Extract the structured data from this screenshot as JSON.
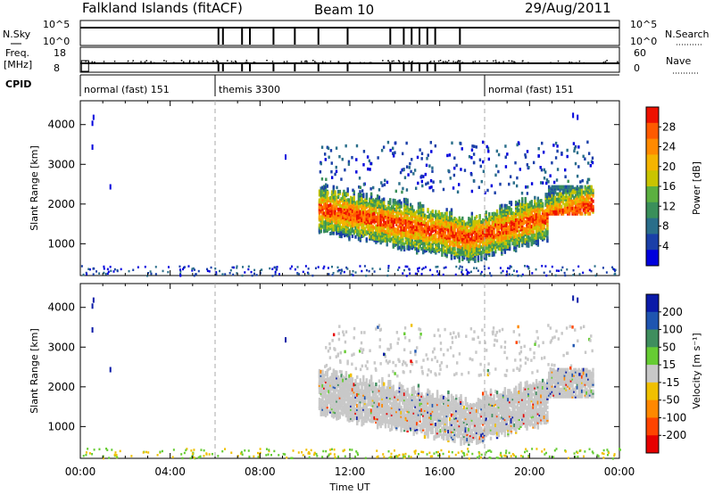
{
  "header": {
    "title": "Falkland Islands (fitACF)",
    "beam": "Beam 10",
    "date": "29/Aug/2011"
  },
  "param_panel": {
    "nsky_label": "N.Sky",
    "nsky_ticks": [
      "10^5",
      "10^0"
    ],
    "nsearch_label": "N.Search",
    "nsearch_ticks": [
      "10^5",
      "10^0"
    ],
    "freq_label": "Freq.",
    "freq_unit": "[MHz]",
    "freq_ticks": [
      "18",
      "8"
    ],
    "nave_label": "Nave",
    "nave_ticks": [
      "60",
      "0"
    ],
    "cpid_label": "CPID",
    "cpid_segments": [
      {
        "name": "normal (fast) 151",
        "start": 0,
        "end": 6
      },
      {
        "name": "themis 3300",
        "start": 6,
        "end": 18
      },
      {
        "name": "normal (fast) 151",
        "start": 18,
        "end": 24
      }
    ]
  },
  "chart_data": [
    {
      "type": "heatmap",
      "title": "",
      "ylabel": "Slant Range [km]",
      "xlabel": "Time UT",
      "xlim": [
        0,
        24
      ],
      "ylim": [
        200,
        4600
      ],
      "x_ticks": [
        "00:00",
        "04:00",
        "08:00",
        "12:00",
        "16:00",
        "20:00",
        "00:00"
      ],
      "y_ticks": [
        1000,
        2000,
        3000,
        4000
      ],
      "colorbar": {
        "label": "Power [dB]",
        "ticks": [
          4,
          8,
          12,
          16,
          20,
          24,
          28
        ],
        "colors": [
          "#0000dd",
          "#1a3fa8",
          "#2a6e8a",
          "#3a8f5a",
          "#5cb040",
          "#c9c400",
          "#f5b400",
          "#ff8a00",
          "#ff5a00",
          "#ee1100"
        ]
      },
      "echo_region": {
        "start_hour": 10.6,
        "end_hour": 22.8,
        "range_km": [
          600,
          3600
        ]
      }
    },
    {
      "type": "heatmap",
      "title": "",
      "ylabel": "Slant Range [km]",
      "xlabel": "Time UT",
      "xlim": [
        0,
        24
      ],
      "ylim": [
        200,
        4600
      ],
      "x_ticks": [
        "00:00",
        "04:00",
        "08:00",
        "12:00",
        "16:00",
        "20:00",
        "00:00"
      ],
      "y_ticks": [
        1000,
        2000,
        3000,
        4000
      ],
      "colorbar": {
        "label": "Velocity [m s⁻¹]",
        "ticks": [
          "200",
          "100",
          "50",
          "15",
          "-15",
          "-50",
          "-100",
          "-200"
        ],
        "colors": [
          "#0a1aa8",
          "#1f55b0",
          "#3f8e5e",
          "#66cc33",
          "#c8c8c8",
          "#f0c000",
          "#ff8800",
          "#ff4400",
          "#e60000"
        ]
      },
      "echo_region": {
        "start_hour": 10.6,
        "end_hour": 22.8,
        "range_km": [
          600,
          3600
        ]
      }
    }
  ]
}
